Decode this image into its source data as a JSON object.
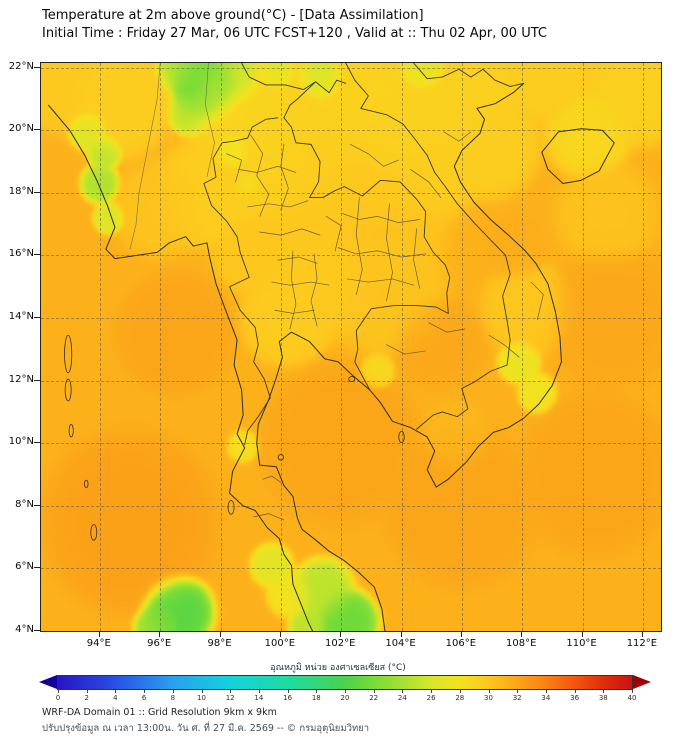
{
  "header": {
    "title": "Temperature at 2m above ground(°C) - [Data Assimilation]",
    "subtitle": "Initial Time : Friday 27 Mar, 06 UTC FCST+120 , Valid at :: Thu 02 Apr, 00 UTC"
  },
  "map": {
    "extent": {
      "lon_min": 92.05,
      "lon_max": 112.6,
      "lat_min": 4.0,
      "lat_max": 22.15
    },
    "lat_ticks": [
      {
        "label": "22°N",
        "value": 22
      },
      {
        "label": "20°N",
        "value": 20
      },
      {
        "label": "18°N",
        "value": 18
      },
      {
        "label": "16°N",
        "value": 16
      },
      {
        "label": "14°N",
        "value": 14
      },
      {
        "label": "12°N",
        "value": 12
      },
      {
        "label": "10°N",
        "value": 10
      },
      {
        "label": "8°N",
        "value": 8
      },
      {
        "label": "6°N",
        "value": 6
      },
      {
        "label": "4°N",
        "value": 4
      }
    ],
    "lon_ticks": [
      {
        "label": "94°E",
        "value": 94
      },
      {
        "label": "96°E",
        "value": 96
      },
      {
        "label": "98°E",
        "value": 98
      },
      {
        "label": "100°E",
        "value": 100
      },
      {
        "label": "102°E",
        "value": 102
      },
      {
        "label": "104°E",
        "value": 104
      },
      {
        "label": "106°E",
        "value": 106
      },
      {
        "label": "108°E",
        "value": 108
      },
      {
        "label": "110°E",
        "value": 110
      },
      {
        "label": "112°E",
        "value": 112
      }
    ]
  },
  "colorbar": {
    "label": "อุณหภูมิ หน่วย องศาเซลเซียส (°C)",
    "unit": "°C",
    "min": 0,
    "max": 40,
    "ticks": [
      0,
      2,
      4,
      6,
      8,
      10,
      12,
      14,
      16,
      18,
      20,
      22,
      24,
      26,
      28,
      30,
      32,
      34,
      36,
      38,
      40
    ],
    "stops": [
      {
        "t": 0,
        "color": "#2814c8"
      },
      {
        "t": 4,
        "color": "#2850e6"
      },
      {
        "t": 8,
        "color": "#28a0f0"
      },
      {
        "t": 12,
        "color": "#14d2dc"
      },
      {
        "t": 16,
        "color": "#1edca0"
      },
      {
        "t": 18,
        "color": "#32d778"
      },
      {
        "t": 20,
        "color": "#4bd24b"
      },
      {
        "t": 22,
        "color": "#78dc37"
      },
      {
        "t": 24,
        "color": "#a5e132"
      },
      {
        "t": 26,
        "color": "#d7e628"
      },
      {
        "t": 28,
        "color": "#f5e11e"
      },
      {
        "t": 30,
        "color": "#fdc81e"
      },
      {
        "t": 32,
        "color": "#fba519"
      },
      {
        "t": 34,
        "color": "#f98214"
      },
      {
        "t": 36,
        "color": "#f5550f"
      },
      {
        "t": 38,
        "color": "#e12d0a"
      },
      {
        "t": 40,
        "color": "#c81414"
      }
    ],
    "arrow_left_color": "#140096",
    "arrow_right_color": "#a00000"
  },
  "temperature_field": {
    "unit": "°C",
    "base_temp_c": 31.3,
    "blobs": [
      [
        98.8,
        20.8,
        1.6,
        28.8
      ],
      [
        101,
        20.5,
        1.8,
        29.2
      ],
      [
        103.5,
        20.8,
        1.8,
        29
      ],
      [
        105.5,
        21,
        1.6,
        29.3
      ],
      [
        106.8,
        21.6,
        1,
        29.3
      ],
      [
        99.8,
        18.8,
        1.5,
        29.3
      ],
      [
        102.2,
        18.8,
        1.6,
        29.8
      ],
      [
        104.6,
        19,
        1.6,
        29.5
      ],
      [
        106.8,
        19.6,
        1.4,
        29.5
      ],
      [
        97.6,
        18,
        1.4,
        29.5
      ],
      [
        100.8,
        17,
        1.4,
        30
      ],
      [
        103.5,
        17,
        1.6,
        30.2
      ],
      [
        110.2,
        19.9,
        1.1,
        28.6
      ],
      [
        111.8,
        21.3,
        1.4,
        29.3
      ],
      [
        108.8,
        21.8,
        1.2,
        29.5
      ],
      [
        101.2,
        15.2,
        1.5,
        29.8
      ],
      [
        100.2,
        14,
        1.2,
        29.6
      ],
      [
        103.5,
        14.8,
        1.6,
        30.2
      ],
      [
        108.2,
        14.3,
        1.2,
        30
      ],
      [
        96,
        17.5,
        1.2,
        30.2
      ],
      [
        94.6,
        21,
        1.5,
        29.5
      ],
      [
        92.6,
        21.5,
        1.2,
        29.8
      ],
      [
        99,
        16,
        1,
        30
      ],
      [
        110.8,
        17.3,
        1.3,
        30.3
      ],
      [
        97.5,
        21.4,
        0.9,
        19.5
      ],
      [
        98.4,
        21.9,
        0.8,
        22.5
      ],
      [
        96.7,
        22,
        0.7,
        24
      ],
      [
        97,
        20.6,
        0.6,
        24.5
      ],
      [
        99.9,
        21.9,
        0.5,
        25.5
      ],
      [
        101.3,
        21.7,
        0.6,
        24
      ],
      [
        104.7,
        22,
        0.6,
        24.5
      ],
      [
        94.15,
        19.3,
        0.45,
        24.5
      ],
      [
        94,
        18.3,
        0.5,
        24
      ],
      [
        94.3,
        17.2,
        0.4,
        26
      ],
      [
        93.6,
        20,
        0.5,
        25.5
      ],
      [
        98.4,
        19.3,
        0.45,
        26.5
      ],
      [
        98.9,
        18.3,
        0.35,
        27.5
      ],
      [
        107.9,
        12.6,
        0.55,
        27
      ],
      [
        108.5,
        11.6,
        0.5,
        27.5
      ],
      [
        99.7,
        6.1,
        0.55,
        26.5
      ],
      [
        101.4,
        5.3,
        0.8,
        24.5
      ],
      [
        102.2,
        4.3,
        0.8,
        21
      ],
      [
        96.6,
        4.6,
        0.9,
        20
      ],
      [
        95.9,
        4.1,
        0.6,
        23
      ],
      [
        100.9,
        4.15,
        0.5,
        24.5
      ],
      [
        100.3,
        5.2,
        0.6,
        27.5
      ],
      [
        98.75,
        9.9,
        0.4,
        28
      ],
      [
        103.2,
        12.3,
        0.45,
        28.5
      ],
      [
        95,
        7.5,
        2.2,
        32.3
      ],
      [
        102,
        10,
        2,
        32
      ],
      [
        106,
        8,
        2,
        32
      ],
      [
        110.5,
        9,
        2,
        32
      ],
      [
        111,
        14,
        1.8,
        31.8
      ],
      [
        105.2,
        13.2,
        1.2,
        31.8
      ],
      [
        96.5,
        13.5,
        1.5,
        32
      ],
      [
        107.8,
        16.3,
        0.9,
        31.5
      ],
      [
        105.8,
        10.2,
        0.9,
        31
      ]
    ]
  },
  "footer": {
    "line1": "WRF-DA Domain 01 :: Grid Resolution 9km x 9km",
    "line2": "ปรับปรุงข้อมูล ณ เวลา 13:00น. วัน ศ. ที่ 27 มี.ค. 2569 -- © กรมอุตุนิยมวิทยา"
  }
}
